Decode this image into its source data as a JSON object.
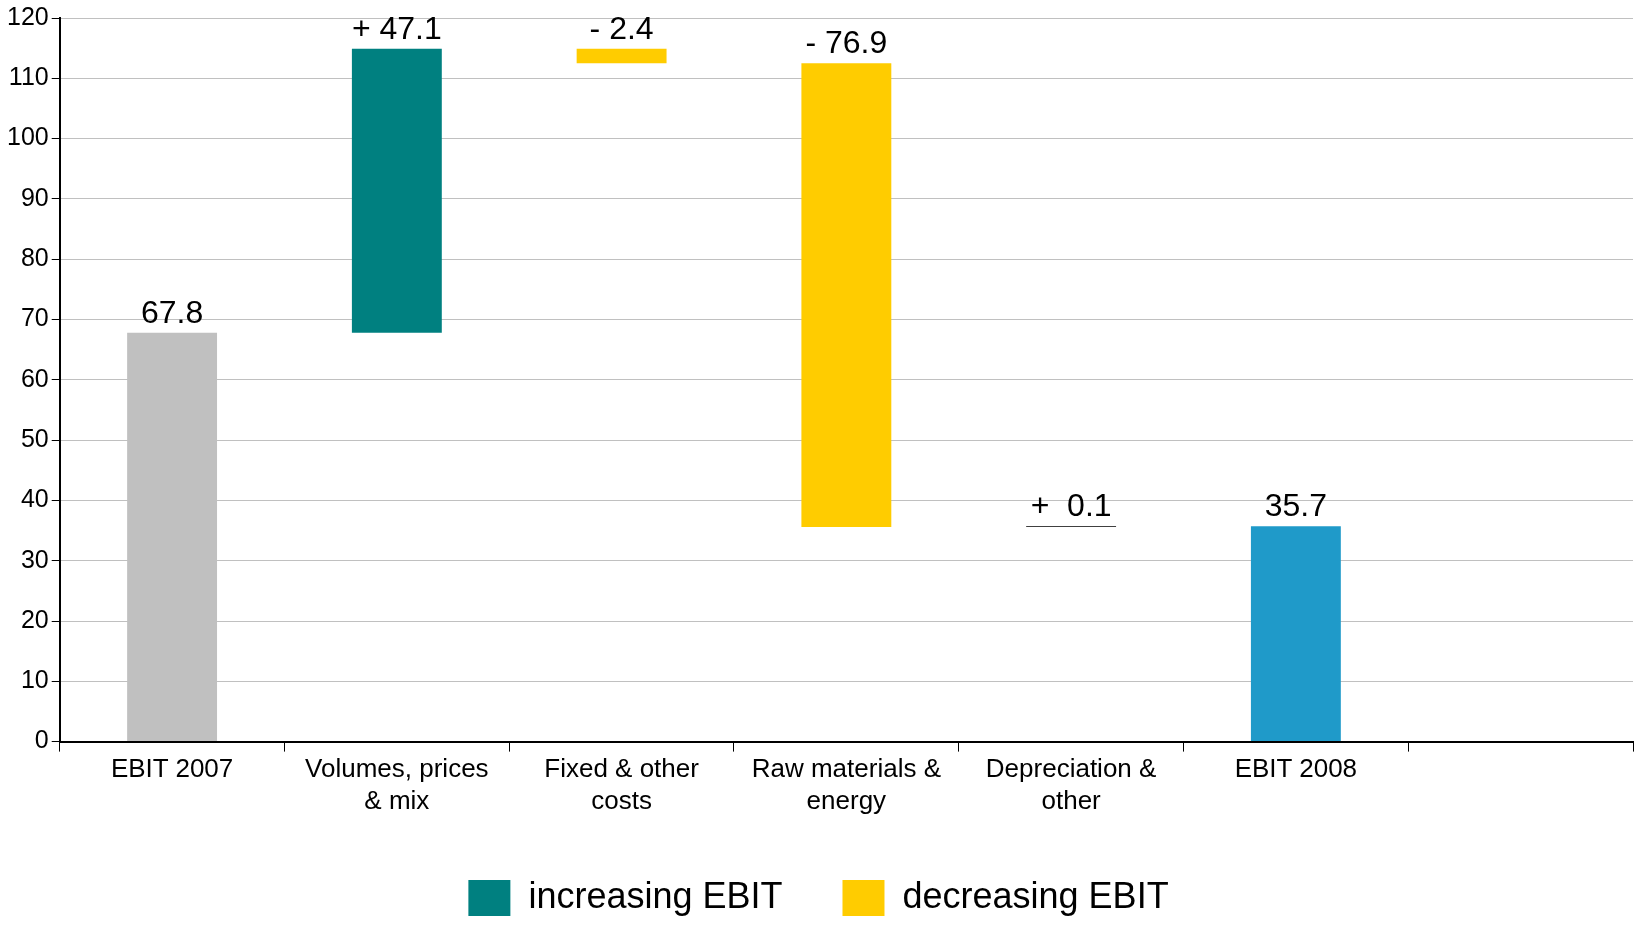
{
  "chart_data": {
    "type": "bar",
    "categories": [
      "EBIT 2007",
      "Volumes, prices & mix",
      "Fixed & other costs",
      "Raw materials & energy",
      "Depreciation & other",
      "EBIT 2008",
      null
    ],
    "series": [
      {
        "color": "#c0c0c0",
        "colors": [
          "#c0c0c0",
          null,
          null,
          null,
          null,
          "#1f9ac9",
          null
        ],
        "values": [
          67.8,
          null,
          null,
          null,
          null,
          35.7,
          null
        ],
        "base": [
          0,
          null,
          null,
          null,
          null,
          0,
          null
        ]
      },
      {
        "name": "increasing EBIT",
        "color": "#008080",
        "colors": [
          null,
          "#008080",
          null,
          null,
          "#000000",
          null,
          null
        ],
        "values": [
          null,
          47.1,
          null,
          null,
          0.1,
          null,
          null
        ],
        "base": [
          null,
          67.8,
          null,
          null,
          35.6,
          null,
          null
        ]
      },
      {
        "name": "decreasing EBIT",
        "color": "#ffcc00",
        "values": [
          null,
          null,
          -2.4,
          -76.9,
          null,
          null,
          null
        ],
        "base": [
          null,
          null,
          114.9,
          112.5,
          null,
          null,
          null
        ]
      }
    ],
    "value_labels": [
      "67.8",
      "+ 47.1",
      "- 2.4",
      "- 76.9",
      "+  0.1",
      "35.7",
      null
    ],
    "ylim": [
      0,
      120
    ],
    "yticks": [
      0,
      10,
      20,
      30,
      40,
      50,
      60,
      70,
      80,
      90,
      100,
      110,
      120
    ],
    "grid": "y",
    "legend": "bottom"
  }
}
